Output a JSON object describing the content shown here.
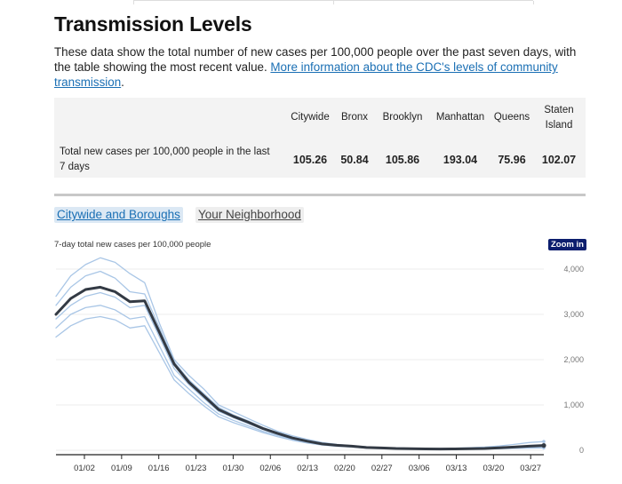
{
  "heading": "Transmission Levels",
  "intro": {
    "text": "These data show the total number of new cases per 100,000 people over the past seven days, with the table showing the most recent value. ",
    "link": "More information about the CDC's levels of community transmission",
    "suffix": "."
  },
  "table": {
    "headers": [
      "Citywide",
      "Bronx",
      "Brooklyn",
      "Manhattan",
      "Queens",
      "Staten\nIsland"
    ],
    "row_label": "Total new cases per 100,000 people in the last 7 days",
    "values": [
      "105.26",
      "50.84",
      "105.86",
      "193.04",
      "75.96",
      "102.07"
    ]
  },
  "tabs": [
    {
      "label": "Citywide and Boroughs",
      "active": true
    },
    {
      "label": "Your Neighborhood",
      "active": false
    }
  ],
  "zoom_label": "Zoom in",
  "colors": {
    "citywide_line": "#333a44",
    "borough_line": "#a9c6e6",
    "link": "#1a6fb4",
    "zoom_bg": "#0c1e6e"
  },
  "chart_data": {
    "type": "line",
    "title": "7-day total new cases per 100,000 people",
    "x_ticks": [
      "01/02",
      "01/09",
      "01/16",
      "01/23",
      "01/30",
      "02/06",
      "02/13",
      "02/20",
      "02/27",
      "03/06",
      "03/13",
      "03/20",
      "03/27"
    ],
    "y_ticks": [
      "0",
      "1,000",
      "2,000",
      "3,000",
      "4,000"
    ],
    "ylim": [
      0,
      4000
    ],
    "x_start": "12/28",
    "series": [
      {
        "role": "citywide",
        "values": [
          3000,
          3350,
          3550,
          3600,
          3500,
          3280,
          3300,
          2600,
          1900,
          1500,
          1200,
          900,
          750,
          620,
          480,
          370,
          270,
          200,
          140,
          110,
          90,
          60,
          50,
          40,
          35,
          30,
          28,
          30,
          35,
          40,
          55,
          70,
          90,
          105
        ]
      },
      {
        "role": "borough",
        "values": [
          3400,
          3850,
          4100,
          4250,
          4150,
          3900,
          3700,
          2800,
          2000,
          1650,
          1350,
          1000,
          850,
          700,
          550,
          420,
          320,
          240,
          170,
          130,
          100,
          75,
          60,
          50,
          45,
          40,
          40,
          45,
          55,
          70,
          95,
          130,
          170,
          193
        ]
      },
      {
        "role": "borough",
        "values": [
          3200,
          3600,
          3850,
          3950,
          3800,
          3500,
          3450,
          2700,
          1950,
          1550,
          1250,
          950,
          780,
          650,
          500,
          390,
          290,
          215,
          150,
          115,
          92,
          65,
          55,
          45,
          38,
          33,
          32,
          34,
          40,
          48,
          62,
          78,
          95,
          106
        ]
      },
      {
        "role": "borough",
        "values": [
          2900,
          3200,
          3400,
          3480,
          3380,
          3150,
          3200,
          2500,
          1800,
          1450,
          1150,
          860,
          720,
          590,
          460,
          355,
          260,
          190,
          135,
          105,
          85,
          58,
          48,
          38,
          33,
          29,
          27,
          29,
          33,
          38,
          50,
          64,
          85,
          102
        ]
      },
      {
        "role": "borough",
        "values": [
          2700,
          3000,
          3150,
          3200,
          3100,
          2900,
          2950,
          2300,
          1650,
          1350,
          1050,
          800,
          660,
          540,
          420,
          330,
          240,
          175,
          125,
          95,
          78,
          52,
          42,
          34,
          28,
          25,
          24,
          26,
          29,
          34,
          44,
          56,
          68,
          76
        ]
      },
      {
        "role": "borough",
        "values": [
          2500,
          2750,
          2900,
          2950,
          2880,
          2700,
          2750,
          2150,
          1550,
          1250,
          980,
          740,
          610,
          500,
          390,
          300,
          220,
          160,
          115,
          88,
          70,
          48,
          38,
          30,
          25,
          22,
          21,
          22,
          25,
          29,
          36,
          42,
          48,
          51
        ]
      }
    ]
  }
}
